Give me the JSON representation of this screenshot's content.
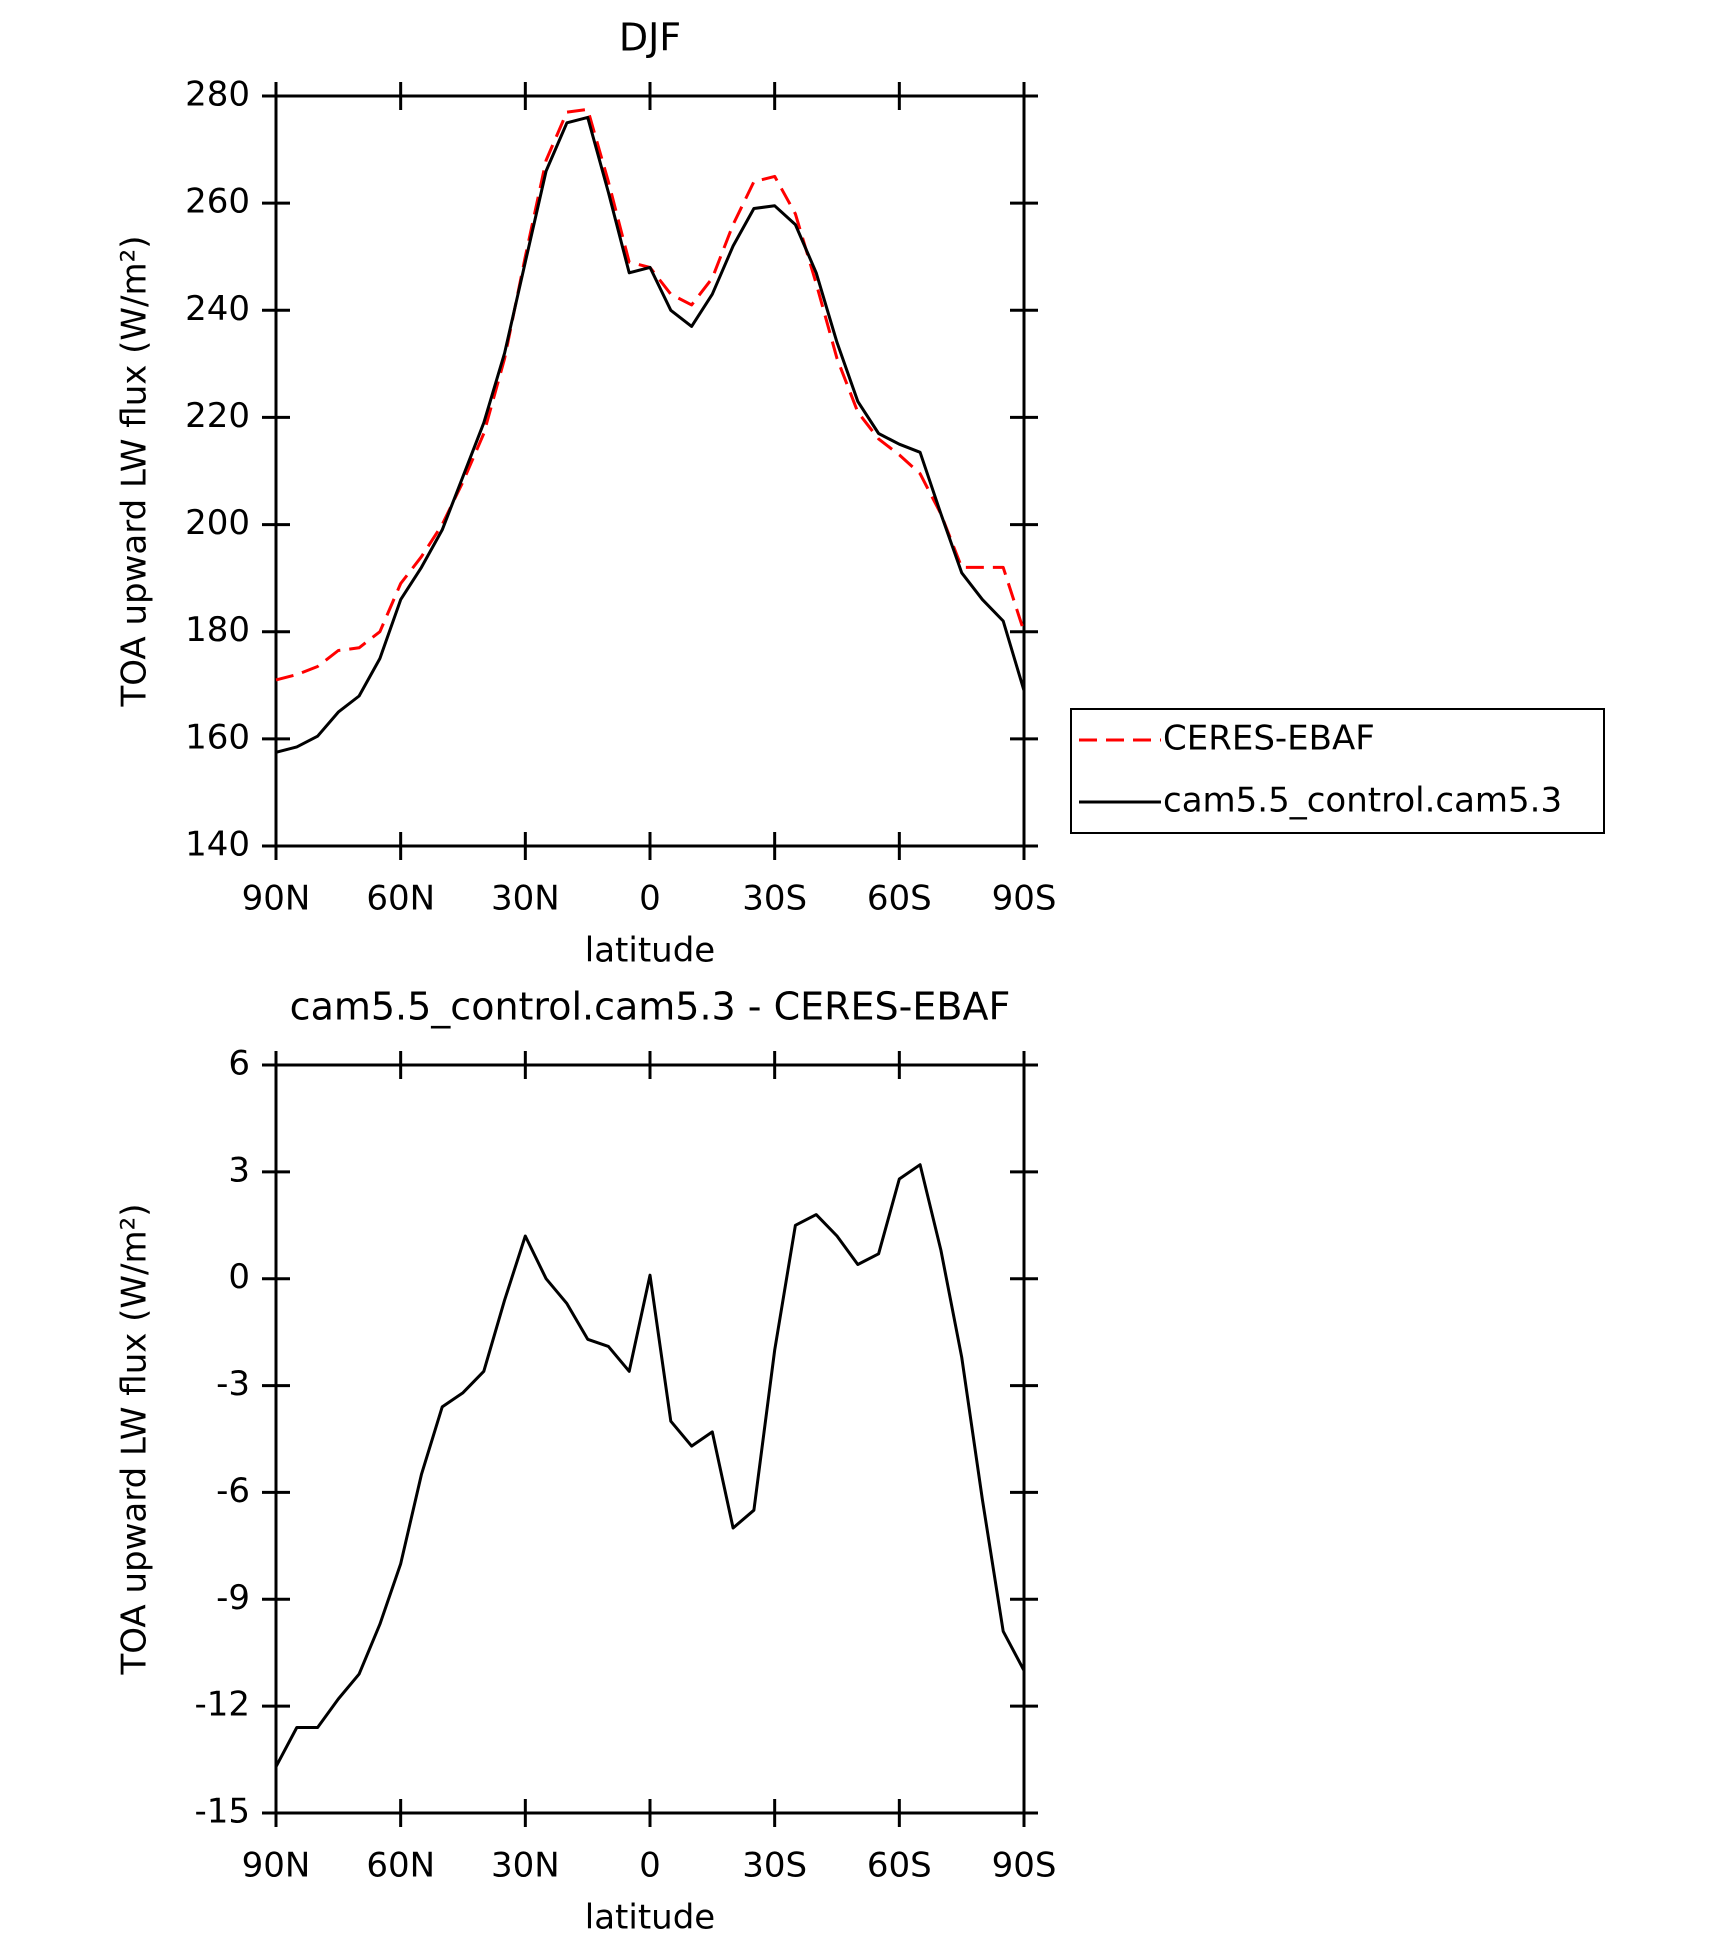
{
  "chart_data": [
    {
      "type": "line",
      "title": "DJF",
      "xlabel": "latitude",
      "ylabel": "TOA upward LW flux (W/m²)",
      "x": [
        90,
        85,
        80,
        75,
        70,
        65,
        60,
        55,
        50,
        45,
        40,
        35,
        30,
        25,
        20,
        15,
        10,
        5,
        0,
        -5,
        -10,
        -15,
        -20,
        -25,
        -30,
        -35,
        -40,
        -45,
        -50,
        -55,
        -60,
        -65,
        -70,
        -75,
        -80,
        -85,
        -90
      ],
      "xlim": [
        90,
        -90
      ],
      "xticks": [
        {
          "value": 90,
          "label": "90N"
        },
        {
          "value": 60,
          "label": "60N"
        },
        {
          "value": 30,
          "label": "30N"
        },
        0,
        {
          "value": -30,
          "label": "30S"
        },
        {
          "value": -60,
          "label": "60S"
        },
        {
          "value": -90,
          "label": "90S"
        }
      ],
      "ylim": [
        140,
        280
      ],
      "yticks": [
        140,
        160,
        180,
        200,
        220,
        240,
        260,
        280
      ],
      "legend": "outside right",
      "series": [
        {
          "name": "CERES-EBAF",
          "color": "#ff0000",
          "dash": true,
          "values": [
            171,
            172,
            173.5,
            176.5,
            177,
            180,
            189,
            194,
            200,
            208,
            217,
            231,
            250,
            268,
            277,
            277.5,
            264,
            249,
            248,
            243,
            241,
            246,
            256,
            264,
            265,
            258,
            245,
            231,
            221,
            216,
            213,
            209.5,
            202,
            192,
            192,
            192,
            180
          ]
        },
        {
          "name": "cam5.5_control.cam5.3",
          "color": "#000000",
          "dash": false,
          "values": [
            157.5,
            158.5,
            160.5,
            165,
            168,
            175,
            186,
            192,
            199,
            209,
            219,
            232,
            249,
            266,
            275,
            276,
            262,
            247,
            248,
            240,
            237,
            243,
            252,
            259,
            259.5,
            256,
            247,
            234,
            223,
            217,
            215,
            213.5,
            202,
            191,
            186,
            182,
            169
          ]
        }
      ]
    },
    {
      "type": "line",
      "title": "cam5.5_control.cam5.3 - CERES-EBAF",
      "xlabel": "latitude",
      "ylabel": "TOA upward LW flux (W/m²)",
      "x": [
        90,
        85,
        80,
        75,
        70,
        65,
        60,
        55,
        50,
        45,
        40,
        35,
        30,
        25,
        20,
        15,
        10,
        5,
        0,
        -5,
        -10,
        -15,
        -20,
        -25,
        -30,
        -35,
        -40,
        -45,
        -50,
        -55,
        -60,
        -65,
        -70,
        -75,
        -80,
        -85,
        -90
      ],
      "xlim": [
        90,
        -90
      ],
      "xticks": [
        {
          "value": 90,
          "label": "90N"
        },
        {
          "value": 60,
          "label": "60N"
        },
        {
          "value": 30,
          "label": "30N"
        },
        0,
        {
          "value": -30,
          "label": "30S"
        },
        {
          "value": -60,
          "label": "60S"
        },
        {
          "value": -90,
          "label": "90S"
        }
      ],
      "ylim": [
        -15,
        6
      ],
      "yticks": [
        -15,
        -12,
        -9,
        -6,
        -3,
        0,
        3,
        6
      ],
      "series": [
        {
          "color": "#000000",
          "dash": false,
          "values": [
            -13.7,
            -12.6,
            -12.6,
            -11.8,
            -11.1,
            -9.7,
            -8,
            -5.5,
            -3.6,
            -3.2,
            -2.6,
            -0.6,
            1.2,
            0,
            -0.7,
            -1.7,
            -1.9,
            -2.6,
            0.1,
            -4,
            -4.7,
            -4.3,
            -7,
            -6.5,
            -2,
            1.5,
            1.8,
            1.2,
            0.4,
            0.7,
            2.8,
            3.2,
            0.8,
            -2.2,
            -6.2,
            -9.9,
            -11
          ]
        }
      ]
    }
  ]
}
